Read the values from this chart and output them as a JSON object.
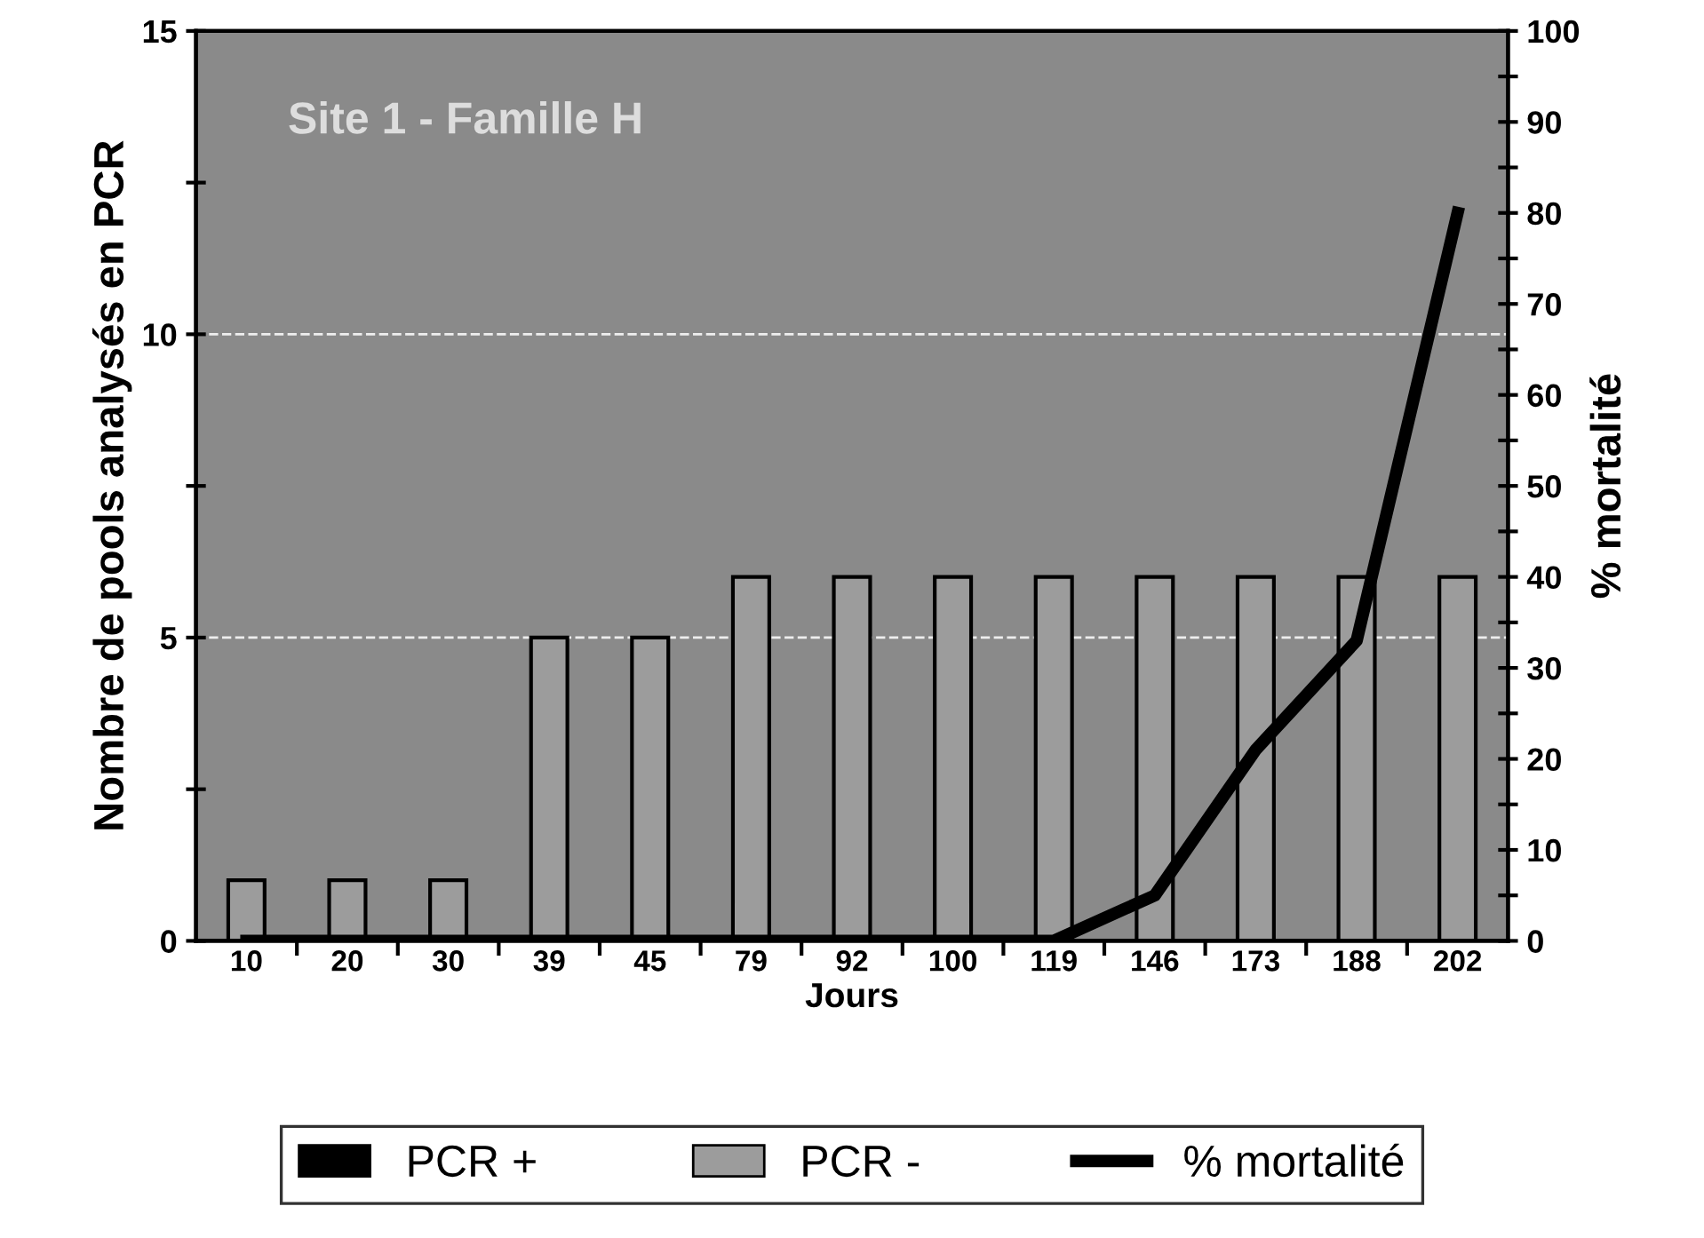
{
  "chart_data": {
    "type": "bar",
    "title": "Site 1 - Famille H",
    "xlabel": "Jours",
    "ylabel": "Nombre de pools analysés en PCR",
    "y2label": "% mortalité",
    "categories": [
      "10",
      "20",
      "30",
      "39",
      "45",
      "79",
      "92",
      "100",
      "119",
      "146",
      "173",
      "188",
      "202"
    ],
    "series": [
      {
        "name": "PCR +",
        "color": "#000000",
        "values": [
          0,
          0,
          0,
          0,
          0,
          0,
          0,
          0,
          0,
          0,
          0,
          0,
          0
        ]
      },
      {
        "name": "PCR -",
        "color": "#9c9c9c",
        "values": [
          1,
          1,
          1,
          5,
          5,
          6,
          6,
          6,
          6,
          6,
          6,
          6,
          6
        ]
      },
      {
        "name": "% mortalité",
        "type": "line",
        "axis": "y2",
        "color": "#000000",
        "values": [
          0,
          0,
          0,
          0,
          0,
          0,
          0,
          0,
          0,
          5,
          21,
          33,
          80
        ]
      }
    ],
    "ylim": [
      0,
      15
    ],
    "yticks": [
      0,
      {
        "value": 2.5,
        "label": null
      },
      5,
      {
        "value": 7.5,
        "label": null
      },
      10,
      {
        "value": 12.5,
        "label": null
      },
      15
    ],
    "y2lim": [
      0,
      100
    ],
    "y2ticks": [
      0,
      {
        "value": 5,
        "label": null
      },
      10,
      {
        "value": 15,
        "label": null
      },
      20,
      {
        "value": 25,
        "label": null
      },
      30,
      {
        "value": 35,
        "label": null
      },
      40,
      {
        "value": 45,
        "label": null
      },
      50,
      {
        "value": 55,
        "label": null
      },
      60,
      {
        "value": 65,
        "label": null
      },
      70,
      {
        "value": 75,
        "label": null
      },
      80,
      {
        "value": 85,
        "label": null
      },
      90,
      {
        "value": 95,
        "label": null
      },
      100
    ],
    "grid": "y",
    "line_style": "solid",
    "marker": "none",
    "legend": "bottom"
  }
}
